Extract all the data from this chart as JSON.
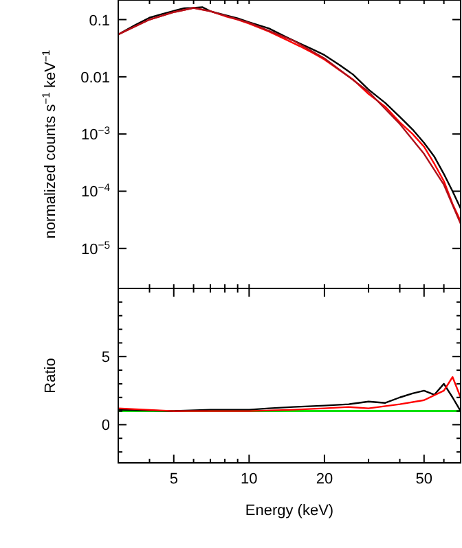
{
  "chart_data": [
    {
      "type": "line",
      "ylabel": "normalized counts s$^{−1}$ keV$^{−1}$",
      "log": "xy",
      "tick_labels": "y",
      "xlim": [
        3,
        70
      ],
      "ylim": [
        2e-06,
        0.22
      ],
      "xticks": [
        {
          "value": 3,
          "label": null
        },
        {
          "value": 4,
          "label": null
        },
        {
          "value": 5,
          "label": null
        },
        {
          "value": 6,
          "label": null
        },
        {
          "value": 7,
          "label": null
        },
        {
          "value": 8,
          "label": null
        },
        {
          "value": 9,
          "label": null
        },
        {
          "value": 10,
          "label": null
        },
        {
          "value": 20,
          "label": null
        },
        {
          "value": 30,
          "label": null
        },
        {
          "value": 40,
          "label": null
        },
        {
          "value": 50,
          "label": null
        },
        {
          "value": 60,
          "label": null
        },
        {
          "value": 70,
          "label": null
        }
      ],
      "yticks": [
        0.1,
        0.01,
        {
          "value": 0.001,
          "label": "10$^{−3}$"
        },
        {
          "value": 0.0001,
          "label": "10$^{−4}$"
        },
        {
          "value": 1e-05,
          "label": "10$^{−5}$"
        }
      ],
      "series": [
        {
          "color": "#000000",
          "x": [
            3,
            3.5,
            4,
            4.5,
            5,
            5.5,
            6,
            6.5,
            7,
            8,
            9,
            10,
            12,
            14,
            16,
            18,
            20,
            23,
            26,
            30,
            35,
            40,
            45,
            50,
            55,
            60,
            65,
            70
          ],
          "values": [
            0.055,
            0.08,
            0.108,
            0.125,
            0.142,
            0.158,
            0.16,
            0.165,
            0.14,
            0.12,
            0.105,
            0.09,
            0.07,
            0.05,
            0.038,
            0.03,
            0.024,
            0.016,
            0.011,
            0.006,
            0.0035,
            0.002,
            0.0012,
            0.0007,
            0.0004,
            0.0002,
            0.0001,
            5e-05
          ]
        },
        {
          "color": "#ff0000",
          "x": [
            3,
            4,
            5,
            6,
            7,
            8,
            9,
            10,
            12,
            14,
            16,
            18,
            20,
            23,
            26,
            30,
            35,
            40,
            45,
            50,
            55,
            60,
            65,
            70
          ],
          "values": [
            0.055,
            0.1,
            0.135,
            0.16,
            0.14,
            0.115,
            0.1,
            0.085,
            0.062,
            0.045,
            0.034,
            0.026,
            0.02,
            0.013,
            0.009,
            0.005,
            0.003,
            0.0016,
            0.001,
            0.0006,
            0.0003,
            0.00015,
            6e-05,
            3e-05
          ]
        },
        {
          "color": "#b0101a",
          "x": [
            3,
            4,
            5,
            6,
            7,
            10,
            15,
            20,
            30,
            40,
            50,
            60,
            70
          ],
          "values": [
            0.055,
            0.1,
            0.135,
            0.16,
            0.14,
            0.088,
            0.043,
            0.021,
            0.0055,
            0.0015,
            0.00045,
            0.00013,
            2.7e-05
          ]
        }
      ]
    },
    {
      "type": "line",
      "xlabel": "Energy (keV)",
      "ylabel": "Ratio",
      "log": "x",
      "xlim": [
        3,
        70
      ],
      "ylim": [
        -2.8,
        10
      ],
      "xticks": [
        {
          "value": 3,
          "label": null
        },
        {
          "value": 4,
          "label": null
        },
        5,
        {
          "value": 6,
          "label": null
        },
        {
          "value": 7,
          "label": null
        },
        {
          "value": 8,
          "label": null
        },
        {
          "value": 9,
          "label": null
        },
        10,
        20,
        {
          "value": 30,
          "label": null
        },
        {
          "value": 40,
          "label": null
        },
        50,
        {
          "value": 60,
          "label": null
        },
        {
          "value": 70,
          "label": null
        }
      ],
      "yticks": [
        {
          "value": -2,
          "label": null
        },
        {
          "value": -1,
          "label": null
        },
        0,
        {
          "value": 1,
          "label": null
        },
        {
          "value": 2,
          "label": null
        },
        {
          "value": 3,
          "label": null
        },
        {
          "value": 4,
          "label": null
        },
        5,
        {
          "value": 6,
          "label": null
        },
        {
          "value": 7,
          "label": null
        },
        {
          "value": 8,
          "label": null
        },
        {
          "value": 9,
          "label": null
        }
      ],
      "ref_lines": [
        {
          "axis": "y",
          "value": 1,
          "color": "#00e000"
        }
      ],
      "series": [
        {
          "color": "#000000",
          "x": [
            3,
            5,
            7,
            10,
            12,
            15,
            20,
            25,
            30,
            35,
            40,
            45,
            50,
            55,
            60,
            65,
            70
          ],
          "values": [
            1.1,
            1,
            1.1,
            1.1,
            1.2,
            1.3,
            1.4,
            1.5,
            1.7,
            1.6,
            2,
            2.3,
            2.5,
            2.2,
            3,
            2,
            1
          ]
        },
        {
          "color": "#ff0000",
          "x": [
            3,
            5,
            10,
            15,
            20,
            25,
            30,
            40,
            50,
            60,
            65,
            70
          ],
          "values": [
            1.2,
            1,
            1,
            1.1,
            1.2,
            1.3,
            1.2,
            1.5,
            1.8,
            2.5,
            3.5,
            2
          ]
        }
      ]
    }
  ]
}
